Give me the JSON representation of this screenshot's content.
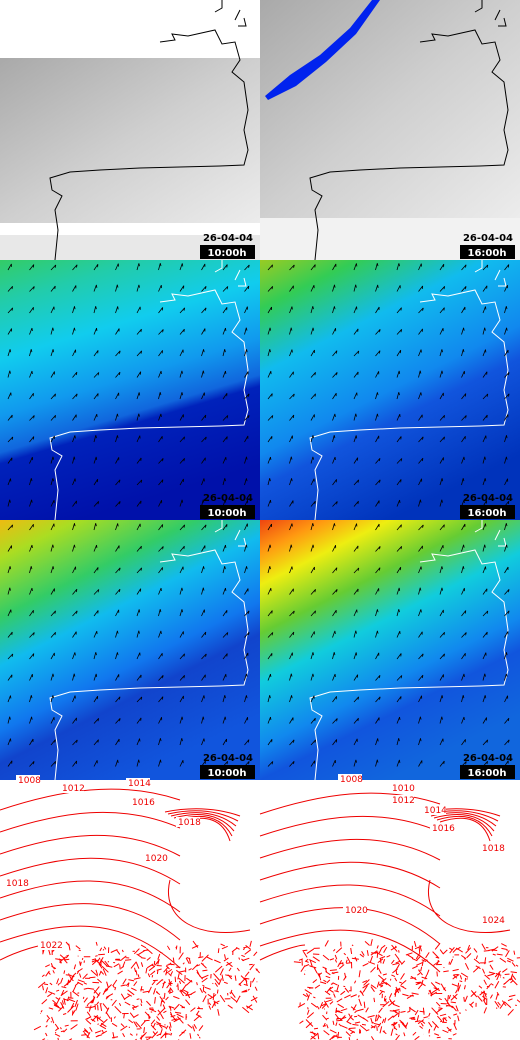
{
  "panels": [
    {
      "date": "26-04-04",
      "time": "10:00h"
    },
    {
      "date": "26-04-04",
      "time": "16:00h"
    },
    {
      "date": "26-04-04",
      "time": "10:00h"
    },
    {
      "date": "26-04-04",
      "time": "16:00h"
    },
    {
      "date": "26-04-04",
      "time": "10:00h"
    },
    {
      "date": "26-04-04",
      "time": "16:00h"
    }
  ],
  "isobars": {
    "left": [
      "1008",
      "1012",
      "1014",
      "1016",
      "1018",
      "1020",
      "1018",
      "1022"
    ],
    "right": [
      "1008",
      "1010",
      "1012",
      "1014",
      "1016",
      "1018",
      "1020",
      "1024"
    ]
  }
}
